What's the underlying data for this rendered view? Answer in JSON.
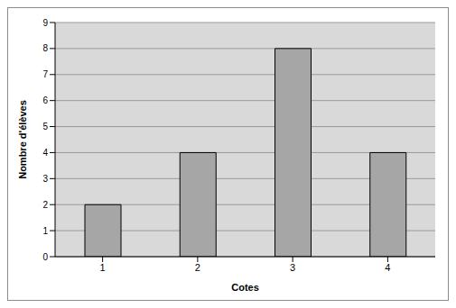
{
  "chart_data": {
    "type": "bar",
    "categories": [
      "1",
      "2",
      "3",
      "4"
    ],
    "values": [
      2,
      4,
      8,
      4
    ],
    "color": "#a6a6a6",
    "ylim": [
      0,
      9
    ],
    "yticks": [
      0,
      1,
      2,
      3,
      4,
      5,
      6,
      7,
      8,
      9
    ],
    "grid": true,
    "x_label": "Cotes",
    "y_label": "Nombre d'élèves"
  }
}
